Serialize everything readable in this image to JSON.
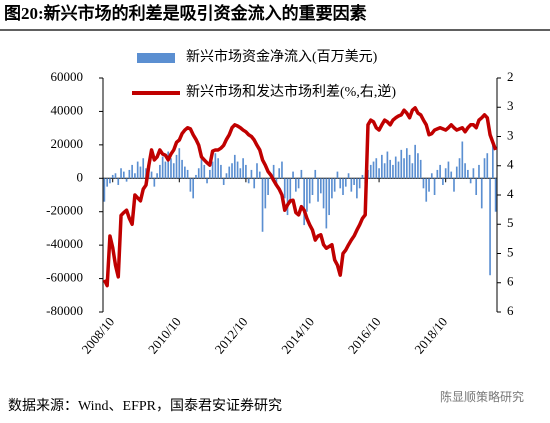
{
  "chart_data": {
    "type": "bar_line",
    "title": "图20:新兴市场的利差是吸引资金流入的重要因素",
    "source": "数据来源：Wind、EFPR，国泰君安证券研究",
    "watermark": "陈显顺策略研究",
    "categories": [
      null,
      null,
      null,
      "2008/10",
      null,
      null,
      null,
      null,
      null,
      null,
      null,
      null,
      null,
      null,
      null,
      null,
      null,
      null,
      null,
      null,
      null,
      null,
      null,
      null,
      null,
      null,
      null,
      "2010/10",
      null,
      null,
      null,
      null,
      null,
      null,
      null,
      null,
      null,
      null,
      null,
      null,
      null,
      null,
      null,
      null,
      null,
      null,
      null,
      null,
      null,
      null,
      null,
      "2012/10",
      null,
      null,
      null,
      null,
      null,
      null,
      null,
      null,
      null,
      null,
      null,
      null,
      null,
      null,
      null,
      null,
      null,
      null,
      null,
      null,
      null,
      null,
      null,
      "2014/10",
      null,
      null,
      null,
      null,
      null,
      null,
      null,
      null,
      null,
      null,
      null,
      null,
      null,
      null,
      null,
      null,
      null,
      null,
      null,
      null,
      null,
      null,
      null,
      "2016/10",
      null,
      null,
      null,
      null,
      null,
      null,
      null,
      null,
      null,
      null,
      null,
      null,
      null,
      null,
      null,
      null,
      null,
      null,
      null,
      null,
      null,
      null,
      null,
      "2018/10",
      null,
      null,
      null,
      null,
      null,
      null,
      null,
      null,
      null,
      null,
      null,
      null,
      null,
      null,
      null,
      null,
      null,
      null
    ],
    "series": [
      {
        "name": "新兴市场资金净流入(百万美元)",
        "color": "#5b8fd1",
        "axis": "y",
        "kind": "bar",
        "values": [
          -14000,
          -5000,
          -3000,
          2000,
          3000,
          -4000,
          6000,
          4000,
          -2000,
          5000,
          8000,
          3000,
          10000,
          7000,
          12000,
          6000,
          9000,
          4000,
          -5000,
          3000,
          8000,
          13000,
          10000,
          16000,
          12000,
          9000,
          14000,
          18000,
          11000,
          7000,
          5000,
          -8000,
          -12000,
          2000,
          6000,
          12000,
          8000,
          -3000,
          5000,
          10000,
          15000,
          12000,
          8000,
          -4000,
          3000,
          7000,
          9000,
          14000,
          10000,
          6000,
          12000,
          8000,
          -3000,
          5000,
          -6000,
          9000,
          4000,
          -32000,
          -18000,
          -10000,
          3000,
          8000,
          -5000,
          6000,
          10000,
          -12000,
          -22000,
          -15000,
          4000,
          -8000,
          -6000,
          5000,
          -28000,
          -20000,
          -15000,
          -10000,
          5000,
          -14000,
          -9000,
          -18000,
          -30000,
          -22000,
          -12000,
          -8000,
          4000,
          -6000,
          -10000,
          -5000,
          3000,
          -8000,
          -4000,
          -12000,
          -6000,
          2000,
          -3000,
          5000,
          8000,
          10000,
          12000,
          6000,
          14000,
          9000,
          16000,
          11000,
          8000,
          13000,
          10000,
          17000,
          12000,
          18000,
          14000,
          9000,
          20000,
          15000,
          11000,
          -6000,
          -14000,
          -8000,
          3000,
          -10000,
          5000,
          8000,
          -4000,
          6000,
          10000,
          4000,
          -8000,
          7000,
          12000,
          22000,
          9000,
          5000,
          -3000,
          6000,
          -10000,
          8000,
          -18000,
          12000,
          15000,
          -58000,
          20000,
          -20000
        ]
      },
      {
        "name": "新兴市场和发达市场利差(%,右,逆)",
        "color": "#c00000",
        "axis": "y2",
        "kind": "line",
        "values": [
          5.45,
          5.55,
          4.7,
          4.9,
          5.2,
          5.4,
          4.35,
          4.3,
          4.26,
          4.4,
          4.5,
          4.0,
          4.05,
          4.1,
          3.9,
          3.83,
          3.5,
          3.23,
          3.4,
          3.35,
          3.23,
          3.3,
          3.32,
          3.4,
          3.3,
          3.23,
          3.1,
          3.06,
          2.95,
          2.89,
          2.85,
          2.87,
          2.97,
          3.05,
          3.15,
          3.35,
          3.4,
          3.45,
          3.49,
          3.25,
          3.23,
          3.23,
          3.2,
          3.15,
          3.05,
          2.97,
          2.85,
          2.8,
          2.82,
          2.85,
          2.89,
          2.92,
          2.97,
          3.0,
          3.06,
          3.15,
          3.23,
          3.4,
          3.49,
          3.6,
          3.66,
          3.75,
          3.83,
          3.9,
          4.0,
          4.26,
          4.17,
          4.1,
          4.09,
          4.3,
          4.34,
          4.2,
          4.26,
          4.4,
          4.51,
          4.6,
          4.77,
          4.7,
          4.68,
          4.85,
          4.91,
          4.88,
          4.85,
          5.11,
          5.2,
          5.37,
          5.0,
          4.94,
          4.85,
          4.77,
          4.7,
          4.6,
          4.51,
          4.4,
          4.34,
          2.8,
          2.72,
          2.75,
          2.85,
          2.89,
          2.8,
          2.72,
          2.75,
          2.8,
          2.72,
          2.68,
          2.65,
          2.63,
          2.55,
          2.6,
          2.68,
          2.55,
          2.51,
          2.6,
          2.63,
          2.72,
          2.8,
          2.97,
          2.95,
          2.89,
          2.87,
          2.85,
          2.87,
          2.89,
          2.85,
          2.8,
          2.85,
          2.89,
          2.87,
          2.85,
          2.92,
          2.85,
          2.8,
          2.8,
          2.85,
          2.72,
          2.68,
          2.63,
          2.68,
          2.97,
          3.1,
          3.23
        ]
      }
    ],
    "ylim": [
      -80000,
      60000
    ],
    "yticks": [
      -80000,
      -60000,
      -40000,
      -20000,
      0,
      20000,
      40000,
      60000
    ],
    "y2lim": [
      2,
      6
    ],
    "y2_inverted": true,
    "y2ticks": [
      2,
      {
        "value": 2.5,
        "label": "3"
      },
      3,
      {
        "value": 3.5,
        "label": "4"
      },
      4,
      {
        "value": 4.5,
        "label": "5"
      },
      5,
      {
        "value": 5.5,
        "label": "6"
      },
      6
    ]
  }
}
